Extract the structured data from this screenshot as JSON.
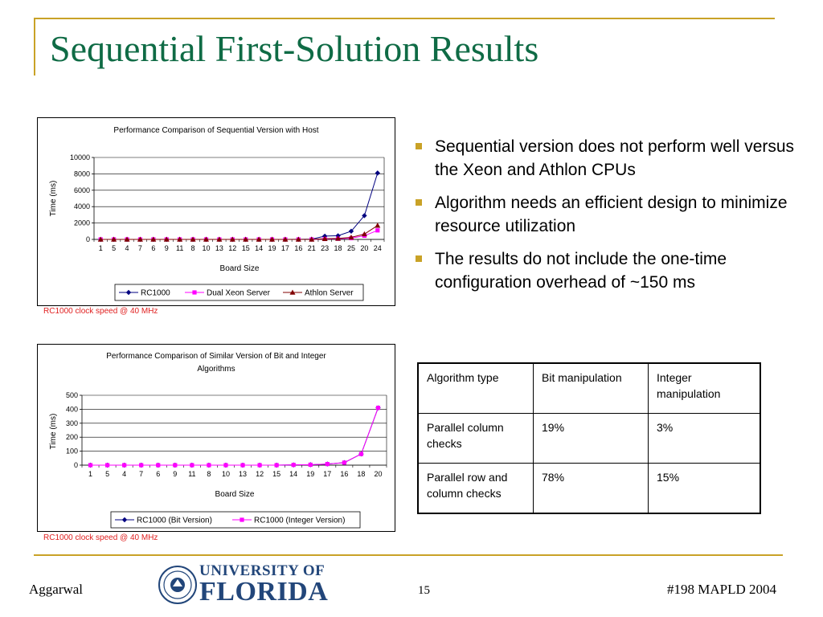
{
  "slide": {
    "title": "Sequential First-Solution Results",
    "bullets": [
      "Sequential version does not perform well versus the Xeon and Athlon CPUs",
      "Algorithm needs an efficient design to minimize resource utilization",
      "The results do not include the one-time configuration overhead of ~150 ms"
    ],
    "notes": [
      "RC1000 clock speed @ 40 MHz",
      "RC1000 clock speed @ 40 MHz"
    ]
  },
  "table": {
    "header": [
      "Algorithm type",
      "Bit manipulation",
      "Integer manipulation"
    ],
    "rows": [
      [
        "Parallel column checks",
        "19%",
        "3%"
      ],
      [
        "Parallel row and column checks",
        "78%",
        "15%"
      ]
    ]
  },
  "footer": {
    "author": "Aggarwal",
    "page": "15",
    "event": "#198 MAPLD 2004",
    "logo_line1": "UNIVERSITY OF",
    "logo_line2": "FLORIDA"
  },
  "colors": {
    "title": "#0f6b45",
    "accent_gold": "#c9a227",
    "series_navy": "#000080",
    "series_magenta": "#ff00ff",
    "series_maroon": "#800000",
    "note_red": "#e02020",
    "logo_blue": "#22467a"
  },
  "chart_data": [
    {
      "type": "line",
      "title": "Performance Comparison of Sequential Version with Host",
      "xlabel": "Board Size",
      "ylabel": "Time (ms)",
      "categories": [
        "1",
        "5",
        "4",
        "7",
        "6",
        "9",
        "11",
        "8",
        "10",
        "13",
        "12",
        "15",
        "14",
        "19",
        "17",
        "16",
        "21",
        "23",
        "18",
        "25",
        "20",
        "24"
      ],
      "ylim": [
        0,
        10000
      ],
      "yticks": [
        0,
        2000,
        4000,
        6000,
        8000,
        10000
      ],
      "grid": true,
      "legend": "bottom",
      "series": [
        {
          "name": "RC1000",
          "color": "#000080",
          "marker": "diamond",
          "values": [
            0,
            0,
            0,
            0,
            0,
            0,
            0,
            0,
            0,
            0,
            0,
            0,
            0,
            0,
            0,
            10,
            30,
            400,
            450,
            1000,
            2900,
            8100
          ]
        },
        {
          "name": "Dual Xeon Server",
          "color": "#ff00ff",
          "marker": "square",
          "values": [
            0,
            0,
            0,
            0,
            0,
            0,
            0,
            0,
            0,
            0,
            0,
            0,
            0,
            0,
            0,
            0,
            0,
            50,
            80,
            150,
            450,
            1100
          ]
        },
        {
          "name": "Athlon Server",
          "color": "#800000",
          "marker": "triangle",
          "values": [
            0,
            0,
            0,
            0,
            0,
            0,
            0,
            0,
            0,
            0,
            0,
            0,
            0,
            0,
            0,
            0,
            0,
            80,
            120,
            250,
            650,
            1700
          ]
        }
      ]
    },
    {
      "type": "line",
      "title": "Performance Comparison of Similar Version of Bit and Integer Algorithms",
      "xlabel": "Board Size",
      "ylabel": "Time (ms)",
      "categories": [
        "1",
        "5",
        "4",
        "7",
        "6",
        "9",
        "11",
        "8",
        "10",
        "13",
        "12",
        "15",
        "14",
        "19",
        "17",
        "16",
        "18",
        "20"
      ],
      "ylim": [
        0,
        500
      ],
      "yticks": [
        0,
        100,
        200,
        300,
        400,
        500
      ],
      "grid": true,
      "legend": "bottom",
      "series": [
        {
          "name": "RC1000 (Bit Version)",
          "color": "#000080",
          "marker": "diamond",
          "values": [
            0,
            0,
            0,
            0,
            0,
            0,
            0,
            0,
            0,
            0,
            0,
            0,
            2,
            3,
            8,
            18,
            80,
            410
          ]
        },
        {
          "name": "RC1000 (Integer Version)",
          "color": "#ff00ff",
          "marker": "square",
          "values": [
            0,
            0,
            0,
            0,
            0,
            0,
            0,
            0,
            0,
            0,
            0,
            0,
            2,
            3,
            8,
            18,
            80,
            410
          ]
        }
      ]
    }
  ]
}
